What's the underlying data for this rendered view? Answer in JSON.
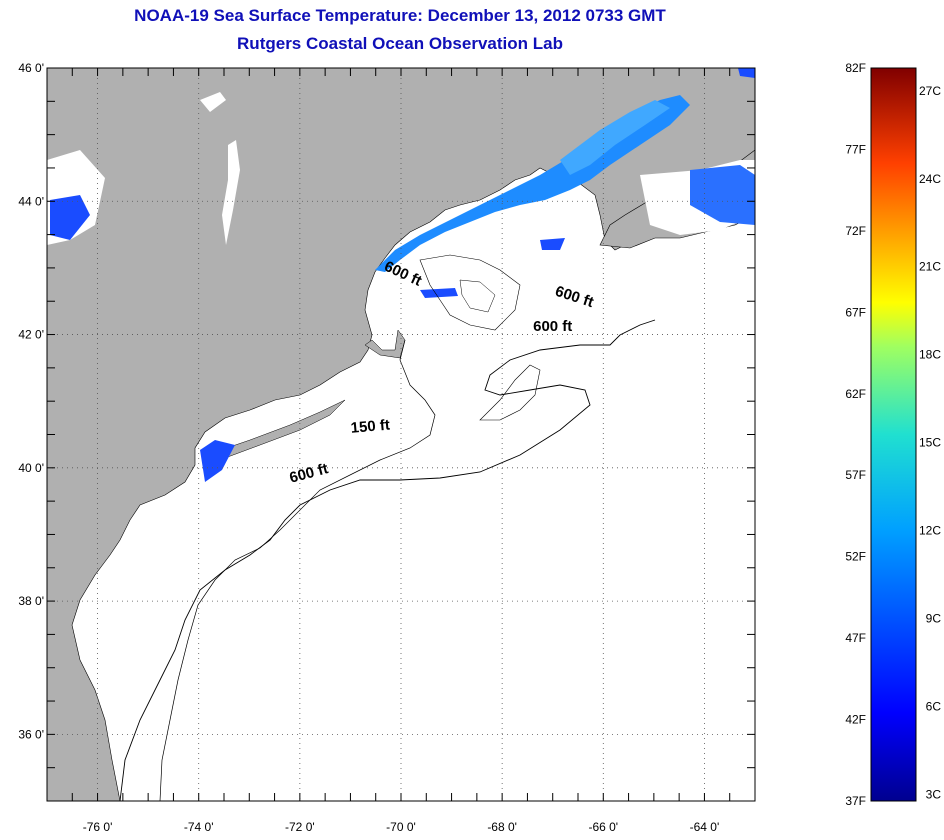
{
  "title": {
    "line1": "NOAA-19 Sea Surface Temperature:  December 13, 2012 0733 GMT",
    "line2": "Rutgers Coastal Ocean Observation Lab"
  },
  "map": {
    "lon_range": [
      -77,
      -63
    ],
    "lat_range": [
      35,
      46
    ],
    "lat_labels": [
      "46 0'",
      "44 0'",
      "42 0'",
      "40 0'",
      "38 0'",
      "36 0'"
    ],
    "lat_values": [
      46,
      44,
      42,
      40,
      38,
      36
    ],
    "lon_labels": [
      "-76 0'",
      "-74 0'",
      "-72 0'",
      "-70 0'",
      "-68 0'",
      "-66 0'",
      "-64 0'"
    ],
    "lon_values": [
      -76,
      -74,
      -72,
      -70,
      -68,
      -66,
      -64
    ],
    "grid": true,
    "land_color": "#b0b0b0",
    "ocean_color": "#ffffff",
    "contour_labels": [
      {
        "text": "600 ft",
        "lon": -70.0,
        "lat": 42.85,
        "rotate": 25
      },
      {
        "text": "600 ft",
        "lon": -66.6,
        "lat": 42.5,
        "rotate": 18
      },
      {
        "text": "600 ft",
        "lon": -67.0,
        "lat": 42.05,
        "rotate": 0
      },
      {
        "text": "150 ft",
        "lon": -70.6,
        "lat": 40.55,
        "rotate": -5
      },
      {
        "text": "600 ft",
        "lon": -71.8,
        "lat": 39.85,
        "rotate": -15
      }
    ]
  },
  "colorbar": {
    "f_labels": [
      "82F",
      "77F",
      "72F",
      "67F",
      "62F",
      "57F",
      "52F",
      "47F",
      "42F",
      "37F"
    ],
    "c_labels": [
      "27C",
      "24C",
      "21C",
      "18C",
      "15C",
      "12C",
      "9C",
      "6C",
      "3C"
    ],
    "c_values": [
      27,
      24,
      21,
      18,
      15,
      12,
      9,
      6,
      3
    ]
  }
}
